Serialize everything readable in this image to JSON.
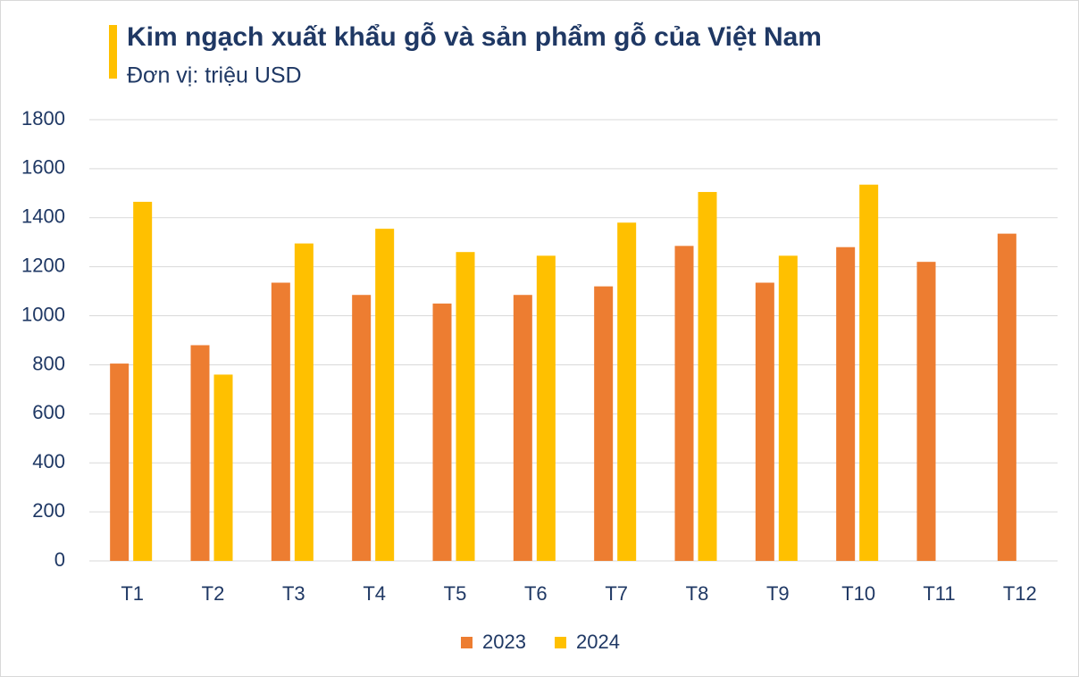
{
  "chart_data": {
    "type": "bar",
    "title": "Kim ngạch xuất khẩu gỗ và sản phẩm gỗ của Việt Nam",
    "subtitle": "Đơn vị: triệu USD",
    "categories": [
      "T1",
      "T2",
      "T3",
      "T4",
      "T5",
      "T6",
      "T7",
      "T8",
      "T9",
      "T10",
      "T11",
      "T12"
    ],
    "series": [
      {
        "name": "2023",
        "color": "#ed7d31",
        "values": [
          805,
          880,
          1135,
          1085,
          1050,
          1085,
          1120,
          1285,
          1135,
          1280,
          1220,
          1335
        ]
      },
      {
        "name": "2024",
        "color": "#ffc000",
        "values": [
          1465,
          760,
          1295,
          1355,
          1260,
          1245,
          1380,
          1505,
          1245,
          1535,
          null,
          null
        ]
      }
    ],
    "ylim": [
      0,
      1800
    ],
    "yticks": [
      0,
      200,
      400,
      600,
      800,
      1000,
      1200,
      1400,
      1600,
      1800
    ],
    "grid": true,
    "legend": "bottom"
  }
}
